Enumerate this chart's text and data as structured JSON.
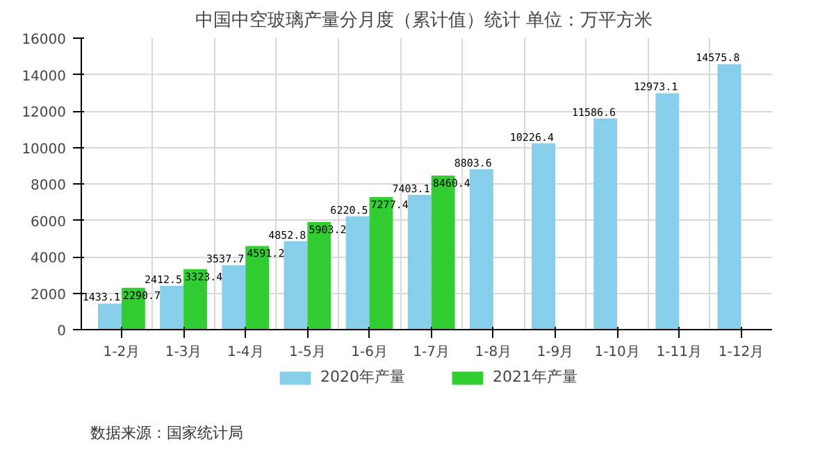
{
  "chart_data": {
    "type": "bar",
    "title": "中国中空玻璃产量分月度（累计值）统计  单位：万平方米",
    "categories": [
      "1-2月",
      "1-3月",
      "1-4月",
      "1-5月",
      "1-6月",
      "1-7月",
      "1-8月",
      "1-9月",
      "1-10月",
      "1-11月",
      "1-12月"
    ],
    "series": [
      {
        "name": "2020年产量",
        "color": "#87ceeb",
        "values": [
          1433.1,
          2412.5,
          3537.7,
          4852.8,
          6220.5,
          7403.1,
          8803.6,
          10226.4,
          11586.6,
          12973.1,
          14575.8
        ]
      },
      {
        "name": "2021年产量",
        "color": "#32cd32",
        "values": [
          2290.7,
          3323.4,
          4591.2,
          5903.2,
          7277.4,
          8460.4,
          null,
          null,
          null,
          null,
          null
        ]
      }
    ],
    "ylim": [
      0,
      16000
    ],
    "yticks": [
      0,
      2000,
      4000,
      6000,
      8000,
      10000,
      12000,
      14000,
      16000
    ],
    "grid": true,
    "legend": "bottom",
    "data_labels": true,
    "annotations": [
      "数据来源：国家统计局"
    ]
  }
}
